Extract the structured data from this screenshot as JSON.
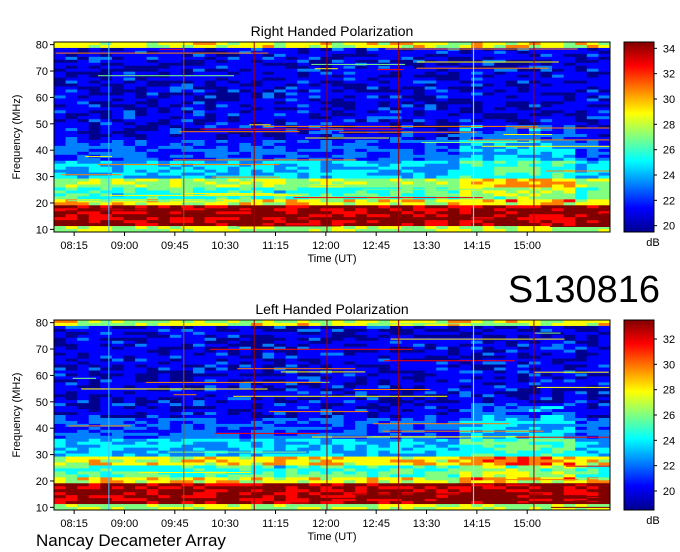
{
  "page": {
    "id_label": "S130816",
    "footer": "Nancay Decameter Array"
  },
  "chart_data": [
    {
      "type": "heatmap",
      "title": "Right Handed Polarization",
      "xlabel": "Time (UT)",
      "ylabel": "Frequency (MHz)",
      "x_ticks": [
        "08:15",
        "09:00",
        "09:45",
        "10:30",
        "11:15",
        "12:00",
        "12:45",
        "13:30",
        "14:15",
        "15:00"
      ],
      "y_ticks": [
        10,
        20,
        30,
        40,
        50,
        60,
        70,
        80
      ],
      "ylim": [
        9,
        81
      ],
      "x_range": [
        "07:57",
        "16:14"
      ],
      "colorbar": {
        "unit": "dB",
        "ticks": [
          20,
          22,
          24,
          26,
          28,
          30,
          32,
          34
        ],
        "range": [
          19.5,
          34.5
        ]
      }
    },
    {
      "type": "heatmap",
      "title": "Left Handed Polarization",
      "xlabel": "Time (UT)",
      "ylabel": "Frequency (MHz)",
      "x_ticks": [
        "08:15",
        "09:00",
        "09:45",
        "10:30",
        "11:15",
        "12:00",
        "12:45",
        "13:30",
        "14:15",
        "15:00"
      ],
      "y_ticks": [
        10,
        20,
        30,
        40,
        50,
        60,
        70,
        80
      ],
      "ylim": [
        9,
        81
      ],
      "x_range": [
        "07:57",
        "16:14"
      ],
      "colorbar": {
        "unit": "dB",
        "ticks": [
          20,
          22,
          24,
          26,
          28,
          30,
          32
        ],
        "range": [
          18.5,
          33.5
        ]
      }
    }
  ],
  "colors": {
    "scale": [
      "#00008f",
      "#0000ff",
      "#0080ff",
      "#00ffff",
      "#80ff80",
      "#ffff00",
      "#ff8000",
      "#ff0000",
      "#800000"
    ]
  }
}
